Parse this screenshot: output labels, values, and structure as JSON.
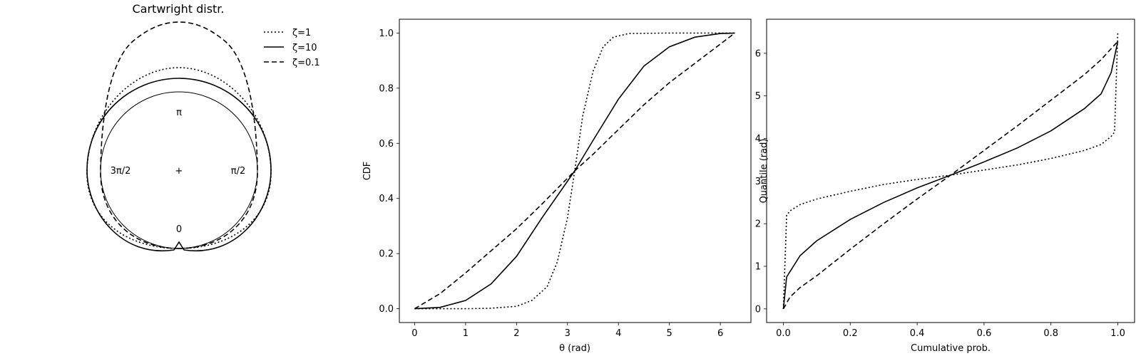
{
  "chart_data": [
    {
      "type": "polar-line",
      "title": "Cartwright distr.",
      "angle_labels": [
        "π",
        "π/2",
        "0",
        "3π/2"
      ],
      "center_marker": "+",
      "legend": [
        "ζ=1",
        "ζ=10",
        "ζ=0.1"
      ],
      "series": [
        {
          "name": "ζ=1",
          "style": "dotted"
        },
        {
          "name": "ζ=10",
          "style": "solid"
        },
        {
          "name": "ζ=0.1",
          "style": "dashed"
        }
      ],
      "reference_circle": true,
      "legend_position": "right of polar plot"
    },
    {
      "type": "line",
      "xlabel": "θ (rad)",
      "ylabel": "CDF",
      "xlim": [
        -0.3,
        6.6
      ],
      "ylim": [
        -0.05,
        1.05
      ],
      "xticks": [
        "0",
        "1",
        "2",
        "3",
        "4",
        "5",
        "6"
      ],
      "yticks": [
        "0.0",
        "0.2",
        "0.4",
        "0.6",
        "0.8",
        "1.0"
      ],
      "series": [
        {
          "name": "ζ=1",
          "style": "dotted",
          "x": [
            0,
            1,
            1.5,
            2.0,
            2.3,
            2.6,
            2.8,
            3.0,
            3.1416,
            3.3,
            3.5,
            3.7,
            3.9,
            4.2,
            5.0,
            6.2832
          ],
          "y": [
            0,
            0.0002,
            0.002,
            0.009,
            0.03,
            0.08,
            0.17,
            0.33,
            0.5,
            0.7,
            0.86,
            0.95,
            0.985,
            0.998,
            1.0,
            1.0
          ]
        },
        {
          "name": "ζ=10",
          "style": "solid",
          "x": [
            0,
            0.5,
            1.0,
            1.5,
            2.0,
            2.5,
            3.1416,
            3.5,
            4.0,
            4.5,
            5.0,
            5.5,
            6.0,
            6.2832
          ],
          "y": [
            0,
            0.005,
            0.03,
            0.09,
            0.19,
            0.33,
            0.5,
            0.61,
            0.76,
            0.88,
            0.95,
            0.985,
            0.998,
            1.0
          ]
        },
        {
          "name": "ζ=0.1",
          "style": "dashed",
          "x": [
            0,
            0.5,
            1.0,
            1.5,
            2.0,
            2.5,
            3.1416,
            3.5,
            4.0,
            4.5,
            5.0,
            5.5,
            6.0,
            6.2832
          ],
          "y": [
            0,
            0.055,
            0.13,
            0.21,
            0.29,
            0.38,
            0.5,
            0.56,
            0.65,
            0.74,
            0.82,
            0.89,
            0.96,
            1.0
          ]
        }
      ]
    },
    {
      "type": "line",
      "xlabel": "Cumulative prob.",
      "ylabel": "Quantile (rad)",
      "xlim": [
        -0.05,
        1.05
      ],
      "ylim": [
        -0.32,
        6.8
      ],
      "xticks": [
        "0.0",
        "0.2",
        "0.4",
        "0.6",
        "0.8",
        "1.0"
      ],
      "yticks": [
        "0",
        "1",
        "2",
        "3",
        "4",
        "5",
        "6"
      ],
      "series": [
        {
          "name": "ζ=1",
          "style": "dotted",
          "x": [
            0,
            0.01,
            0.02,
            0.05,
            0.1,
            0.2,
            0.3,
            0.4,
            0.5,
            0.6,
            0.7,
            0.8,
            0.9,
            0.95,
            0.98,
            0.99,
            1.0
          ],
          "y": [
            0,
            2.2,
            2.3,
            2.45,
            2.58,
            2.76,
            2.92,
            3.04,
            3.14,
            3.26,
            3.38,
            3.53,
            3.72,
            3.86,
            4.05,
            4.15,
            6.5
          ]
        },
        {
          "name": "ζ=10",
          "style": "solid",
          "x": [
            0,
            0.01,
            0.05,
            0.1,
            0.2,
            0.3,
            0.4,
            0.5,
            0.6,
            0.7,
            0.8,
            0.9,
            0.95,
            0.98,
            1.0
          ],
          "y": [
            0,
            0.75,
            1.25,
            1.6,
            2.1,
            2.5,
            2.84,
            3.14,
            3.45,
            3.78,
            4.18,
            4.7,
            5.05,
            5.55,
            6.28
          ]
        },
        {
          "name": "ζ=0.1",
          "style": "dashed",
          "x": [
            0,
            0.02,
            0.05,
            0.1,
            0.2,
            0.3,
            0.4,
            0.5,
            0.6,
            0.7,
            0.8,
            0.9,
            0.95,
            1.0
          ],
          "y": [
            0,
            0.28,
            0.5,
            0.78,
            1.4,
            2.0,
            2.58,
            3.14,
            3.72,
            4.3,
            4.9,
            5.5,
            5.85,
            6.28
          ]
        }
      ]
    }
  ]
}
